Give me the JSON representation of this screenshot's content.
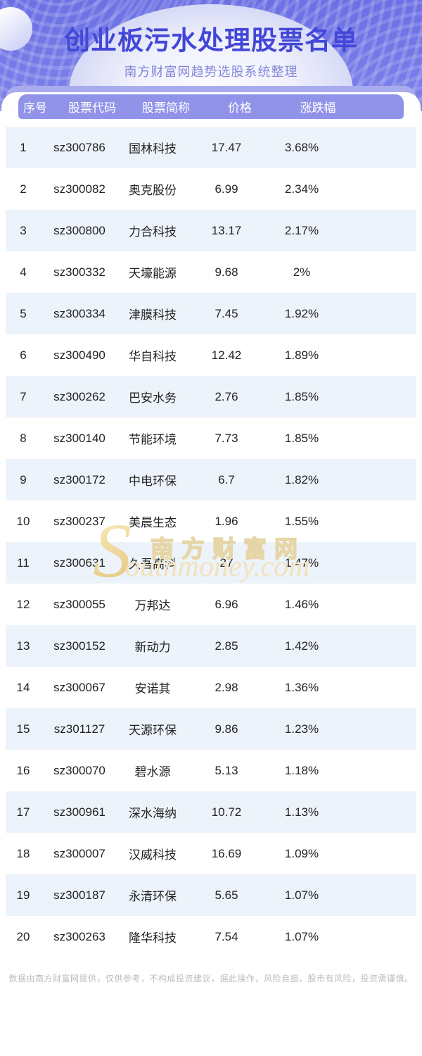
{
  "header": {
    "title": "创业板污水处理股票名单",
    "subtitle": "南方财富网趋势选股系统整理"
  },
  "table": {
    "columns": [
      "序号",
      "股票代码",
      "股票简称",
      "价格",
      "涨跌幅"
    ],
    "rows": [
      [
        "1",
        "sz300786",
        "国林科技",
        "17.47",
        "3.68%"
      ],
      [
        "2",
        "sz300082",
        "奥克股份",
        "6.99",
        "2.34%"
      ],
      [
        "3",
        "sz300800",
        "力合科技",
        "13.17",
        "2.17%"
      ],
      [
        "4",
        "sz300332",
        "天壕能源",
        "9.68",
        "2%"
      ],
      [
        "5",
        "sz300334",
        "津膜科技",
        "7.45",
        "1.92%"
      ],
      [
        "6",
        "sz300490",
        "华自科技",
        "12.42",
        "1.89%"
      ],
      [
        "7",
        "sz300262",
        "巴安水务",
        "2.76",
        "1.85%"
      ],
      [
        "8",
        "sz300140",
        "节能环境",
        "7.73",
        "1.85%"
      ],
      [
        "9",
        "sz300172",
        "中电环保",
        "6.7",
        "1.82%"
      ],
      [
        "10",
        "sz300237",
        "美晨生态",
        "1.96",
        "1.55%"
      ],
      [
        "11",
        "sz300631",
        "久吾高科",
        "27",
        "1.47%"
      ],
      [
        "12",
        "sz300055",
        "万邦达",
        "6.96",
        "1.46%"
      ],
      [
        "13",
        "sz300152",
        "新动力",
        "2.85",
        "1.42%"
      ],
      [
        "14",
        "sz300067",
        "安诺其",
        "2.98",
        "1.36%"
      ],
      [
        "15",
        "sz301127",
        "天源环保",
        "9.86",
        "1.23%"
      ],
      [
        "16",
        "sz300070",
        "碧水源",
        "5.13",
        "1.18%"
      ],
      [
        "17",
        "sz300961",
        "深水海纳",
        "10.72",
        "1.13%"
      ],
      [
        "18",
        "sz300007",
        "汉威科技",
        "16.69",
        "1.09%"
      ],
      [
        "19",
        "sz300187",
        "永清环保",
        "5.65",
        "1.07%"
      ],
      [
        "20",
        "sz300263",
        "隆华科技",
        "7.54",
        "1.07%"
      ]
    ]
  },
  "watermark": {
    "initial": "S",
    "brand_cn": "南方财富网",
    "brand_en": "outhmoney.com"
  },
  "footer": {
    "disclaimer": "数据由南方财富网提供，仅供参考，不构成投资建议，据此操作，风险自担。股市有风险，投资需谨慎。"
  },
  "colors": {
    "hero_purple": "#7478e6",
    "title_indigo": "#4347d8",
    "subtitle_lavender": "#8287d9",
    "peek_bar": "#a9abef",
    "table_header": "#9193e9",
    "row_alt_blue": "#edf3fa",
    "body_text": "#232323",
    "watermark_tan": "#e9d8ab",
    "disclaimer_gray": "#bdbdbd"
  }
}
